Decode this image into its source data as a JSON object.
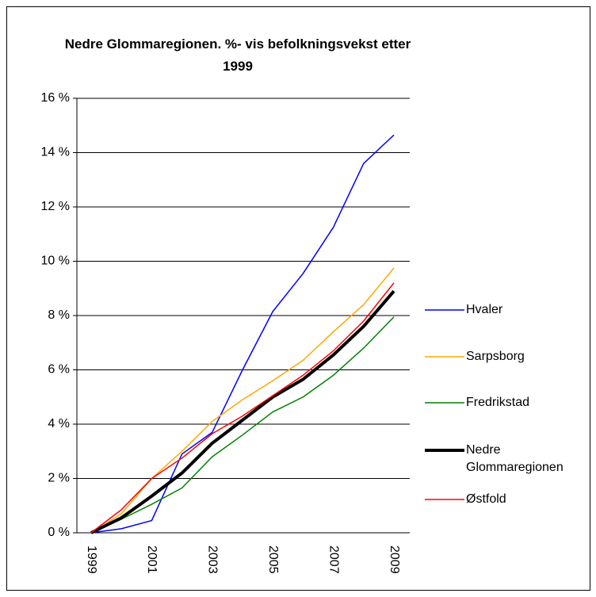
{
  "chart_data": {
    "type": "line",
    "title": "Nedre Glommaregionen. %- vis befolkningsvekst etter 1999",
    "categories": [
      "1999",
      null,
      "2001",
      null,
      "2003",
      null,
      "2005",
      null,
      "2007",
      null,
      "2009"
    ],
    "series": [
      {
        "name": "Hvaler",
        "color": "#0000ff",
        "line_width": 1.5,
        "values": [
          0,
          0.15,
          0.45,
          2.9,
          3.7,
          6.0,
          8.15,
          9.55,
          11.25,
          13.6,
          14.65
        ]
      },
      {
        "name": "Sarpsborg",
        "color": "#ffa500",
        "line_width": 1.5,
        "values": [
          0,
          0.7,
          2.0,
          3.0,
          4.1,
          4.9,
          5.6,
          6.35,
          7.4,
          8.4,
          9.75
        ]
      },
      {
        "name": "Fredrikstad",
        "color": "#008000",
        "line_width": 1.5,
        "values": [
          0,
          0.5,
          1.05,
          1.65,
          2.8,
          3.6,
          4.45,
          5.0,
          5.8,
          6.8,
          7.95
        ]
      },
      {
        "name": "Nedre Glommaregionen",
        "color": "#000000",
        "line_width": 4,
        "values": [
          0,
          0.55,
          1.35,
          2.2,
          3.3,
          4.15,
          5.0,
          5.65,
          6.55,
          7.6,
          8.9
        ]
      },
      {
        "name": "Østfold",
        "color": "#ff0000",
        "line_width": 1.5,
        "values": [
          0,
          0.85,
          2.0,
          2.75,
          3.65,
          4.3,
          5.05,
          5.8,
          6.7,
          7.8,
          9.2
        ]
      }
    ],
    "ylim": [
      0,
      16
    ],
    "yticks": [
      {
        "value": 0,
        "label": "0 %"
      },
      {
        "value": 2,
        "label": "2 %"
      },
      {
        "value": 4,
        "label": "4 %"
      },
      {
        "value": 6,
        "label": "6 %"
      },
      {
        "value": 8,
        "label": "8 %"
      },
      {
        "value": 10,
        "label": "10 %"
      },
      {
        "value": 12,
        "label": "12 %"
      },
      {
        "value": 14,
        "label": "14 %"
      },
      {
        "value": 16,
        "label": "16 %"
      }
    ],
    "grid": true,
    "legend": "right"
  }
}
